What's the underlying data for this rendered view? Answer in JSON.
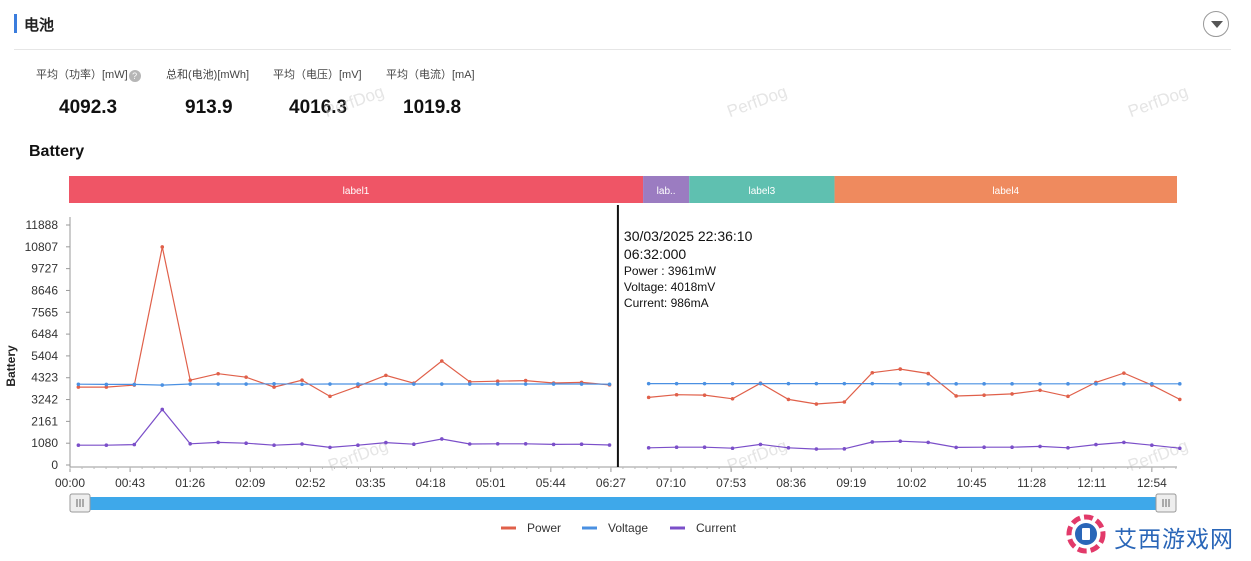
{
  "header": {
    "title": "电池"
  },
  "stats": [
    {
      "label": "平均（功率）[mW]",
      "value": "4092.3",
      "has_help": true
    },
    {
      "label": "总和(电池)[mWh]",
      "value": "913.9"
    },
    {
      "label": "平均（电压）[mV]",
      "value": "4016.3"
    },
    {
      "label": "平均（电流）[mA]",
      "value": "1019.8"
    }
  ],
  "watermark": "PerfDog",
  "brand": {
    "name": "艾西游戏网"
  },
  "colors": {
    "power": "#e0604a",
    "voltage": "#4a90e2",
    "current": "#7b4fc9",
    "label1": "#ef5566",
    "label2": "#9b7cc1",
    "label3": "#5fc0b0",
    "label4": "#ef8a5e",
    "scrollbar": "#3ea8ea"
  },
  "chart_data": {
    "type": "line",
    "title": "Battery",
    "ylabel": "Battery",
    "ylim": [
      0,
      11888
    ],
    "yticks": [
      "0",
      "1080",
      "2161",
      "3242",
      "4323",
      "5404",
      "6484",
      "7565",
      "8646",
      "9727",
      "10807",
      "11888"
    ],
    "xticks": [
      {
        "label": "00:00",
        "t": 0
      },
      {
        "label": "00:43",
        "t": 43
      },
      {
        "label": "01:26",
        "t": 86
      },
      {
        "label": "02:09",
        "t": 129
      },
      {
        "label": "02:52",
        "t": 172
      },
      {
        "label": "03:35",
        "t": 215
      },
      {
        "label": "04:18",
        "t": 258
      },
      {
        "label": "05:01",
        "t": 301
      },
      {
        "label": "05:44",
        "t": 344
      },
      {
        "label": "06:27",
        "t": 387
      },
      {
        "label": "07:10",
        "t": 430
      },
      {
        "label": "07:53",
        "t": 473
      },
      {
        "label": "08:36",
        "t": 516
      },
      {
        "label": "09:19",
        "t": 559
      },
      {
        "label": "10:02",
        "t": 602
      },
      {
        "label": "10:45",
        "t": 645
      },
      {
        "label": "11:28",
        "t": 688
      },
      {
        "label": "12:11",
        "t": 731
      },
      {
        "label": "12:54",
        "t": 774
      }
    ],
    "segments": [
      {
        "name": "label1",
        "display": "label1",
        "start": -12,
        "end": 410,
        "color": "#ef5566"
      },
      {
        "name": "label2",
        "display": "lab..",
        "start": 410,
        "end": 443,
        "color": "#9b7cc1"
      },
      {
        "name": "label3",
        "display": "label3",
        "start": 443,
        "end": 547,
        "color": "#5fc0b0"
      },
      {
        "name": "label4",
        "display": "label4",
        "start": 547,
        "end": 804,
        "color": "#ef8a5e"
      }
    ],
    "series": [
      {
        "name": "Power",
        "color": "#e0604a",
        "runs": [
          {
            "t": [
              6,
              26,
              46,
              66,
              86,
              106,
              126,
              146,
              166,
              186,
              206,
              226,
              246,
              266,
              286,
              306,
              326,
              346,
              366,
              386
            ],
            "values": [
              3860,
              3860,
              3960,
              10800,
              4200,
              4520,
              4350,
              3860,
              4200,
              3400,
              3900,
              4440,
              4050,
              5150,
              4120,
              4150,
              4180,
              4060,
              4090,
              3970
            ]
          },
          {
            "t": [
              414,
              434,
              454,
              474,
              494,
              514,
              534,
              554,
              574,
              594,
              614,
              634,
              654,
              674,
              694,
              714,
              734,
              754,
              774,
              794
            ],
            "values": [
              3350,
              3480,
              3460,
              3280,
              4050,
              3250,
              3020,
              3120,
              4570,
              4750,
              4530,
              3420,
              3460,
              3520,
              3700,
              3400,
              4090,
              4550,
              3960,
              3250
            ]
          }
        ]
      },
      {
        "name": "Voltage",
        "color": "#4a90e2",
        "runs": [
          {
            "t": [
              6,
              26,
              46,
              66,
              86,
              106,
              126,
              146,
              166,
              186,
              206,
              226,
              246,
              266,
              286,
              306,
              326,
              346,
              366,
              386
            ],
            "values": [
              4000,
              3990,
              3990,
              3960,
              4010,
              4010,
              4010,
              4020,
              4000,
              4010,
              4010,
              4010,
              4010,
              4010,
              4010,
              4010,
              4010,
              4010,
              4010,
              4000
            ]
          },
          {
            "t": [
              414,
              434,
              454,
              474,
              494,
              514,
              534,
              554,
              574,
              594,
              614,
              634,
              654,
              674,
              694,
              714,
              734,
              754,
              774,
              794
            ],
            "values": [
              4030,
              4030,
              4030,
              4030,
              4030,
              4030,
              4030,
              4030,
              4030,
              4020,
              4020,
              4020,
              4020,
              4020,
              4020,
              4020,
              4020,
              4020,
              4020,
              4020
            ]
          }
        ]
      },
      {
        "name": "Current",
        "color": "#7b4fc9",
        "runs": [
          {
            "t": [
              6,
              26,
              46,
              66,
              86,
              106,
              126,
              146,
              166,
              186,
              206,
              226,
              246,
              266,
              286,
              306,
              326,
              346,
              366,
              386
            ],
            "values": [
              980,
              980,
              1010,
              2750,
              1050,
              1120,
              1080,
              980,
              1040,
              870,
              980,
              1110,
              1030,
              1290,
              1040,
              1050,
              1050,
              1020,
              1030,
              990
            ]
          },
          {
            "t": [
              414,
              434,
              454,
              474,
              494,
              514,
              534,
              554,
              574,
              594,
              614,
              634,
              654,
              674,
              694,
              714,
              734,
              754,
              774,
              794
            ],
            "values": [
              850,
              880,
              880,
              830,
              1020,
              850,
              790,
              800,
              1140,
              1180,
              1120,
              870,
              880,
              880,
              920,
              850,
              1010,
              1120,
              980,
              830
            ]
          }
        ]
      }
    ],
    "cursor_t": 392,
    "tooltip": {
      "date": "30/03/2025 22:36:10",
      "time": "06:32:000",
      "lines": [
        "Power  : 3961mW",
        "Voltage: 4018mV",
        "Current: 986mA"
      ]
    },
    "legend": {
      "position": "bottom",
      "items": [
        "Power",
        "Voltage",
        "Current"
      ]
    }
  }
}
